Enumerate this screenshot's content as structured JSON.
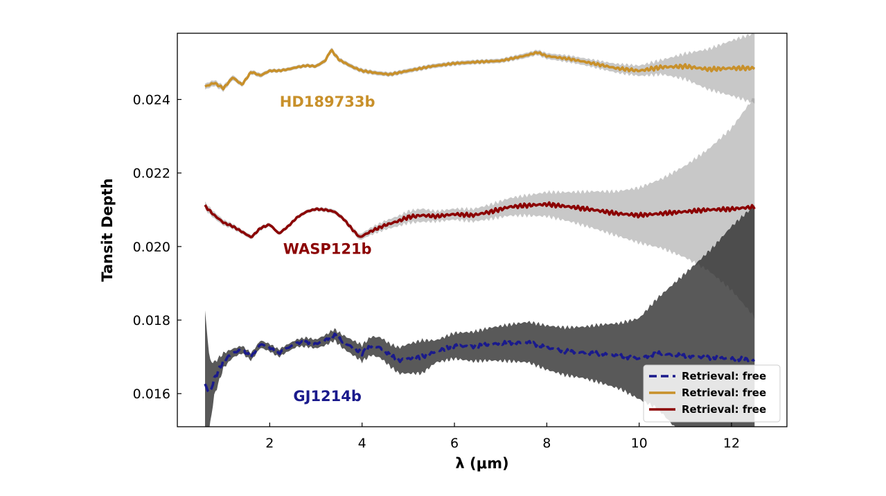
{
  "chart_data": {
    "type": "line",
    "title": "",
    "xlabel": "λ (μm)",
    "ylabel": "Tansit Depth",
    "xlim": [
      0.0,
      13.2
    ],
    "ylim": [
      0.0151,
      0.0258
    ],
    "xticks": [
      2,
      4,
      6,
      8,
      10,
      12
    ],
    "xtick_labels": [
      "2",
      "4",
      "6",
      "8",
      "10",
      "12"
    ],
    "yticks": [
      0.016,
      0.018,
      0.02,
      0.022,
      0.024
    ],
    "ytick_labels": [
      "0.016",
      "0.018",
      "0.020",
      "0.022",
      "0.024"
    ],
    "legend_position": "lower-right",
    "legend": [
      {
        "label": "Retrieval: free",
        "style": "dashed",
        "color": "#1a1a8c"
      },
      {
        "label": "Retrieval: free",
        "style": "solid",
        "color": "#c8902a"
      },
      {
        "label": "Retrieval: free",
        "style": "solid",
        "color": "#8b0000"
      }
    ],
    "annotations": [
      {
        "text": "HD189733b",
        "x": 3.25,
        "y": 0.0238,
        "color": "#c8902a"
      },
      {
        "text": "WASP121b",
        "x": 3.25,
        "y": 0.0198,
        "color": "#8b0000"
      },
      {
        "text": "GJ1214b",
        "x": 3.25,
        "y": 0.0158,
        "color": "#1a1a8c"
      }
    ],
    "series": [
      {
        "color": "#c8902a",
        "linestyle": "solid",
        "band_color": "#9a9a9a",
        "x": [
          0.6,
          0.8,
          1.0,
          1.2,
          1.4,
          1.6,
          1.8,
          2.0,
          2.2,
          2.4,
          2.6,
          2.8,
          3.0,
          3.2,
          3.33,
          3.5,
          3.8,
          4.0,
          4.3,
          4.6,
          5.0,
          5.5,
          6.0,
          6.5,
          7.0,
          7.5,
          7.8,
          8.0,
          8.5,
          9.0,
          9.5,
          10.0,
          10.5,
          11.0,
          11.5,
          12.0,
          12.5
        ],
        "y": [
          0.02435,
          0.02445,
          0.0243,
          0.0246,
          0.0244,
          0.02475,
          0.02465,
          0.02478,
          0.02478,
          0.02482,
          0.02488,
          0.02492,
          0.0249,
          0.02505,
          0.02535,
          0.02508,
          0.02488,
          0.02478,
          0.02472,
          0.02468,
          0.02478,
          0.0249,
          0.02498,
          0.02502,
          0.02505,
          0.02518,
          0.02528,
          0.02518,
          0.0251,
          0.02498,
          0.02485,
          0.02478,
          0.02488,
          0.0249,
          0.02482,
          0.02485,
          0.02485
        ],
        "err": [
          8e-05,
          8e-05,
          8e-05,
          7e-05,
          6e-05,
          6e-05,
          6e-05,
          5e-05,
          5e-05,
          5e-05,
          5e-05,
          5e-05,
          5e-05,
          6e-05,
          7e-05,
          6e-05,
          6e-05,
          6e-05,
          6e-05,
          6e-05,
          6e-05,
          6e-05,
          6e-05,
          6e-05,
          6e-05,
          7e-05,
          7e-05,
          8e-05,
          9e-05,
          0.0001,
          0.00012,
          0.00014,
          0.0002,
          0.00035,
          0.00055,
          0.00075,
          0.00095
        ]
      },
      {
        "color": "#8b0000",
        "linestyle": "solid",
        "band_color": "#9a9a9a",
        "x": [
          0.6,
          0.8,
          1.0,
          1.2,
          1.4,
          1.6,
          1.8,
          2.0,
          2.2,
          2.4,
          2.6,
          2.8,
          3.0,
          3.2,
          3.4,
          3.6,
          3.8,
          3.95,
          4.2,
          4.5,
          4.8,
          5.0,
          5.3,
          5.6,
          6.0,
          6.4,
          6.8,
          7.2,
          7.6,
          8.0,
          8.5,
          9.0,
          9.5,
          10.0,
          10.5,
          11.0,
          11.5,
          12.0,
          12.5
        ],
        "y": [
          0.0211,
          0.02085,
          0.02065,
          0.02055,
          0.0204,
          0.02025,
          0.0205,
          0.0206,
          0.02035,
          0.02055,
          0.0208,
          0.02095,
          0.02102,
          0.021,
          0.02095,
          0.02075,
          0.02045,
          0.02025,
          0.02042,
          0.02058,
          0.0207,
          0.0208,
          0.02085,
          0.02082,
          0.02088,
          0.02085,
          0.02095,
          0.02108,
          0.02112,
          0.02115,
          0.02108,
          0.021,
          0.0209,
          0.02085,
          0.0209,
          0.02095,
          0.021,
          0.02102,
          0.02108
        ],
        "err": [
          0.0001,
          9e-05,
          8e-05,
          7e-05,
          6e-05,
          6e-05,
          6e-05,
          5e-05,
          5e-05,
          5e-05,
          5e-05,
          5e-05,
          5e-05,
          6e-05,
          6e-05,
          6e-05,
          7e-05,
          8e-05,
          0.0001,
          0.00012,
          0.00014,
          0.00016,
          0.00018,
          0.00014,
          0.00015,
          0.00017,
          0.0002,
          0.00024,
          0.00028,
          0.00033,
          0.0004,
          0.0005,
          0.0006,
          0.00075,
          0.00095,
          0.00125,
          0.00165,
          0.0022,
          0.003
        ]
      },
      {
        "color": "#1a1a8c",
        "linestyle": "dashed",
        "band_color": "#2a2a2a",
        "x": [
          0.6,
          0.7,
          0.8,
          1.0,
          1.2,
          1.4,
          1.6,
          1.8,
          2.0,
          2.2,
          2.4,
          2.6,
          2.8,
          3.0,
          3.2,
          3.4,
          3.6,
          3.8,
          4.0,
          4.2,
          4.4,
          4.6,
          4.8,
          5.0,
          5.3,
          5.6,
          6.0,
          6.4,
          6.8,
          7.2,
          7.6,
          8.0,
          8.4,
          8.8,
          9.2,
          9.6,
          10.0,
          10.4,
          10.8,
          11.2,
          11.6,
          12.0,
          12.5
        ],
        "y": [
          0.01625,
          0.016,
          0.0164,
          0.0169,
          0.0171,
          0.0172,
          0.017,
          0.01735,
          0.01725,
          0.0171,
          0.01725,
          0.01738,
          0.0174,
          0.01735,
          0.01745,
          0.0176,
          0.0174,
          0.01725,
          0.0171,
          0.0173,
          0.01725,
          0.01705,
          0.0169,
          0.01695,
          0.017,
          0.01715,
          0.0173,
          0.01728,
          0.01735,
          0.01738,
          0.0174,
          0.01725,
          0.01715,
          0.01712,
          0.01708,
          0.01702,
          0.01695,
          0.0171,
          0.01705,
          0.017,
          0.01698,
          0.01695,
          0.01692
        ],
        "err": [
          0.002,
          0.0009,
          0.00045,
          0.0002,
          0.00012,
          0.0001,
          0.0001,
          0.0001,
          0.0001,
          0.0001,
          0.0001,
          0.0001,
          0.00012,
          0.00012,
          0.00014,
          0.00015,
          0.00018,
          0.0002,
          0.00022,
          0.00025,
          0.00028,
          0.0003,
          0.00035,
          0.0004,
          0.00045,
          0.0003,
          0.00035,
          0.0004,
          0.00045,
          0.0005,
          0.00055,
          0.0006,
          0.00065,
          0.0007,
          0.0008,
          0.0009,
          0.0011,
          0.0015,
          0.002,
          0.0025,
          0.003,
          0.0036,
          0.0042
        ]
      }
    ]
  }
}
